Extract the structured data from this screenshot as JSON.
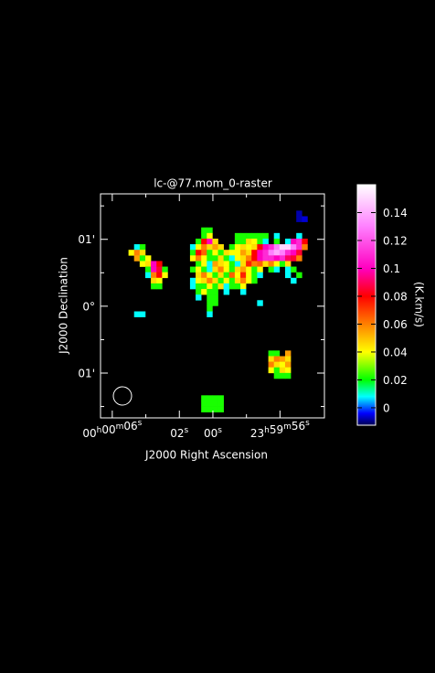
{
  "chart_data": {
    "type": "raster",
    "title": "lc-@77.mom_0-raster",
    "xlabel": "J2000 Right Ascension",
    "ylabel": "J2000 Declination",
    "colorbar_label": "(K.km/s)",
    "xlim": [
      6.7,
      -6.65
    ],
    "ylim": [
      1.68,
      -1.67
    ],
    "xticks": [
      {
        "value": 6,
        "label": "00h00m06s"
      },
      {
        "value": 2,
        "label": "02s"
      },
      {
        "value": 0,
        "label": "00s"
      },
      {
        "value": -4,
        "label": "23h59m56s"
      }
    ],
    "xminorticks": [
      4,
      -2
    ],
    "yticks": [
      {
        "value": 1,
        "label": "01'"
      },
      {
        "value": 0,
        "label": "0°"
      },
      {
        "value": -1,
        "label": "01'"
      }
    ],
    "yminorticks": [
      1.5,
      0.5,
      -0.5,
      -1.5
    ],
    "zlim": [
      -0.0125,
      0.16
    ],
    "zticks": [
      0,
      0.02,
      0.04,
      0.06,
      0.08,
      0.1,
      0.12,
      0.14
    ],
    "colorscale": [
      [
        -0.0125,
        "#000050"
      ],
      [
        -0.004,
        "#0000ff"
      ],
      [
        0.008,
        "#00ffff"
      ],
      [
        0.02,
        "#00ff00"
      ],
      [
        0.04,
        "#ffff00"
      ],
      [
        0.06,
        "#ff8000"
      ],
      [
        0.08,
        "#ff0000"
      ],
      [
        0.1,
        "#ff00c0"
      ],
      [
        0.13,
        "#ff80ff"
      ],
      [
        0.16,
        "#ffffff"
      ]
    ],
    "cells": [
      [
        6,
        9,
        0.008
      ],
      [
        7,
        9,
        0.022
      ],
      [
        5,
        10,
        0.04
      ],
      [
        6,
        10,
        0.06
      ],
      [
        7,
        10,
        0.045
      ],
      [
        6,
        11,
        0.055
      ],
      [
        7,
        11,
        0.022
      ],
      [
        8,
        11,
        0.04
      ],
      [
        7,
        12,
        0.04
      ],
      [
        8,
        12,
        0.045
      ],
      [
        9,
        12,
        0.1
      ],
      [
        10,
        12,
        0.08
      ],
      [
        8,
        13,
        0.022
      ],
      [
        9,
        13,
        0.1
      ],
      [
        10,
        13,
        0.085
      ],
      [
        11,
        13,
        0.022
      ],
      [
        8,
        14,
        0.008
      ],
      [
        9,
        14,
        0.06
      ],
      [
        10,
        14,
        0.08
      ],
      [
        11,
        14,
        0.04
      ],
      [
        9,
        15,
        0.045
      ],
      [
        10,
        15,
        0.04
      ],
      [
        9,
        16,
        0.022
      ],
      [
        10,
        16,
        0.022
      ],
      [
        6,
        21,
        0.008
      ],
      [
        7,
        21,
        0.008
      ],
      [
        35,
        3,
        -0.008
      ],
      [
        35,
        4,
        -0.008
      ],
      [
        36,
        4,
        -0.006
      ],
      [
        18,
        6,
        0.022
      ],
      [
        19,
        6,
        0.022
      ],
      [
        18,
        7,
        0.022
      ],
      [
        19,
        7,
        0.04
      ],
      [
        24,
        7,
        0.022
      ],
      [
        25,
        7,
        0.022
      ],
      [
        26,
        7,
        0.022
      ],
      [
        27,
        7,
        0.022
      ],
      [
        28,
        7,
        0.022
      ],
      [
        29,
        7,
        0.022
      ],
      [
        31,
        7,
        0.008
      ],
      [
        35,
        7,
        0.008
      ],
      [
        17,
        8,
        0.022
      ],
      [
        18,
        8,
        0.08
      ],
      [
        19,
        8,
        0.1
      ],
      [
        20,
        8,
        0.045
      ],
      [
        24,
        8,
        0.022
      ],
      [
        25,
        8,
        0.022
      ],
      [
        26,
        8,
        0.045
      ],
      [
        27,
        8,
        0.04
      ],
      [
        28,
        8,
        0.022
      ],
      [
        29,
        8,
        0.008
      ],
      [
        31,
        8,
        0.022
      ],
      [
        33,
        8,
        0.008
      ],
      [
        34,
        8,
        0.1
      ],
      [
        35,
        8,
        0.11
      ],
      [
        36,
        8,
        0.08
      ],
      [
        16,
        9,
        0.008
      ],
      [
        17,
        9,
        0.04
      ],
      [
        18,
        9,
        0.06
      ],
      [
        19,
        9,
        0.045
      ],
      [
        20,
        9,
        0.055
      ],
      [
        21,
        9,
        0.045
      ],
      [
        23,
        9,
        0.022
      ],
      [
        24,
        9,
        0.04
      ],
      [
        25,
        9,
        0.045
      ],
      [
        26,
        9,
        0.04
      ],
      [
        27,
        9,
        0.045
      ],
      [
        28,
        9,
        0.08
      ],
      [
        29,
        9,
        0.1
      ],
      [
        30,
        9,
        0.11
      ],
      [
        31,
        9,
        0.13
      ],
      [
        32,
        9,
        0.15
      ],
      [
        33,
        9,
        0.15
      ],
      [
        34,
        9,
        0.13
      ],
      [
        35,
        9,
        0.11
      ],
      [
        36,
        9,
        0.06
      ],
      [
        16,
        10,
        0.022
      ],
      [
        17,
        10,
        0.08
      ],
      [
        18,
        10,
        0.065
      ],
      [
        19,
        10,
        0.022
      ],
      [
        20,
        10,
        0.04
      ],
      [
        21,
        10,
        0.022
      ],
      [
        22,
        10,
        0.045
      ],
      [
        23,
        10,
        0.04
      ],
      [
        24,
        10,
        0.04
      ],
      [
        25,
        10,
        0.055
      ],
      [
        26,
        10,
        0.045
      ],
      [
        27,
        10,
        0.08
      ],
      [
        28,
        10,
        0.1
      ],
      [
        29,
        10,
        0.11
      ],
      [
        30,
        10,
        0.13
      ],
      [
        31,
        10,
        0.14
      ],
      [
        32,
        10,
        0.13
      ],
      [
        33,
        10,
        0.11
      ],
      [
        34,
        10,
        0.1
      ],
      [
        35,
        10,
        0.085
      ],
      [
        16,
        11,
        0.04
      ],
      [
        17,
        11,
        0.06
      ],
      [
        18,
        11,
        0.04
      ],
      [
        19,
        11,
        0.022
      ],
      [
        20,
        11,
        0.022
      ],
      [
        21,
        11,
        0.045
      ],
      [
        22,
        11,
        0.022
      ],
      [
        23,
        11,
        0.008
      ],
      [
        24,
        11,
        0.04
      ],
      [
        25,
        11,
        0.045
      ],
      [
        26,
        11,
        0.06
      ],
      [
        27,
        11,
        0.08
      ],
      [
        28,
        11,
        0.1
      ],
      [
        29,
        11,
        0.11
      ],
      [
        30,
        11,
        0.11
      ],
      [
        31,
        11,
        0.1
      ],
      [
        32,
        11,
        0.11
      ],
      [
        33,
        11,
        0.09
      ],
      [
        34,
        11,
        0.085
      ],
      [
        35,
        11,
        0.06
      ],
      [
        17,
        12,
        0.022
      ],
      [
        18,
        12,
        0.04
      ],
      [
        19,
        12,
        0.008
      ],
      [
        20,
        12,
        0.055
      ],
      [
        21,
        12,
        0.045
      ],
      [
        22,
        12,
        0.04
      ],
      [
        23,
        12,
        0.022
      ],
      [
        24,
        12,
        0.008
      ],
      [
        25,
        12,
        0.045
      ],
      [
        26,
        12,
        0.075
      ],
      [
        27,
        12,
        0.06
      ],
      [
        28,
        12,
        0.065
      ],
      [
        29,
        12,
        0.045
      ],
      [
        30,
        12,
        0.06
      ],
      [
        31,
        12,
        0.04
      ],
      [
        32,
        12,
        0.022
      ],
      [
        33,
        12,
        0.045
      ],
      [
        16,
        13,
        0.022
      ],
      [
        17,
        13,
        0.04
      ],
      [
        18,
        13,
        0.022
      ],
      [
        19,
        13,
        0.008
      ],
      [
        20,
        13,
        0.045
      ],
      [
        21,
        13,
        0.06
      ],
      [
        22,
        13,
        0.04
      ],
      [
        23,
        13,
        0.022
      ],
      [
        24,
        13,
        0.045
      ],
      [
        25,
        13,
        0.055
      ],
      [
        26,
        13,
        0.04
      ],
      [
        27,
        13,
        0.022
      ],
      [
        28,
        13,
        0.04
      ],
      [
        30,
        13,
        0.022
      ],
      [
        31,
        13,
        0.008
      ],
      [
        33,
        13,
        0.008
      ],
      [
        34,
        13,
        0.022
      ],
      [
        17,
        14,
        0.045
      ],
      [
        18,
        14,
        0.06
      ],
      [
        19,
        14,
        0.04
      ],
      [
        20,
        14,
        0.022
      ],
      [
        21,
        14,
        0.045
      ],
      [
        22,
        14,
        0.022
      ],
      [
        23,
        14,
        0.065
      ],
      [
        24,
        14,
        0.04
      ],
      [
        25,
        14,
        0.075
      ],
      [
        26,
        14,
        0.04
      ],
      [
        27,
        14,
        0.022
      ],
      [
        28,
        14,
        0.008
      ],
      [
        33,
        14,
        0.008
      ],
      [
        35,
        14,
        0.022
      ],
      [
        16,
        15,
        0.008
      ],
      [
        17,
        15,
        0.04
      ],
      [
        18,
        15,
        0.045
      ],
      [
        19,
        15,
        0.06
      ],
      [
        20,
        15,
        0.045
      ],
      [
        21,
        15,
        0.022
      ],
      [
        22,
        15,
        0.04
      ],
      [
        23,
        15,
        0.022
      ],
      [
        24,
        15,
        0.045
      ],
      [
        25,
        15,
        0.06
      ],
      [
        26,
        15,
        0.04
      ],
      [
        27,
        15,
        0.022
      ],
      [
        34,
        15,
        0.008
      ],
      [
        16,
        16,
        0.008
      ],
      [
        17,
        16,
        0.022
      ],
      [
        18,
        16,
        0.022
      ],
      [
        19,
        16,
        0.04
      ],
      [
        20,
        16,
        0.022
      ],
      [
        21,
        16,
        0.045
      ],
      [
        22,
        16,
        0.008
      ],
      [
        23,
        16,
        0.022
      ],
      [
        24,
        16,
        0.022
      ],
      [
        25,
        16,
        0.04
      ],
      [
        17,
        17,
        0.022
      ],
      [
        18,
        17,
        0.04
      ],
      [
        19,
        17,
        0.022
      ],
      [
        20,
        17,
        0.022
      ],
      [
        22,
        17,
        0.008
      ],
      [
        25,
        17,
        0.008
      ],
      [
        17,
        18,
        0.008
      ],
      [
        19,
        18,
        0.022
      ],
      [
        20,
        18,
        0.022
      ],
      [
        19,
        19,
        0.022
      ],
      [
        20,
        19,
        0.022
      ],
      [
        28,
        19,
        0.008
      ],
      [
        19,
        20,
        0.022
      ],
      [
        19,
        21,
        0.008
      ],
      [
        30,
        28,
        0.022
      ],
      [
        31,
        28,
        0.022
      ],
      [
        33,
        28,
        0.055
      ],
      [
        30,
        29,
        0.045
      ],
      [
        31,
        29,
        0.06
      ],
      [
        32,
        29,
        0.055
      ],
      [
        33,
        29,
        0.045
      ],
      [
        30,
        30,
        0.06
      ],
      [
        31,
        30,
        0.045
      ],
      [
        32,
        30,
        0.04
      ],
      [
        33,
        30,
        0.055
      ],
      [
        30,
        31,
        0.04
      ],
      [
        31,
        31,
        0.022
      ],
      [
        32,
        31,
        0.045
      ],
      [
        33,
        31,
        0.04
      ],
      [
        31,
        32,
        0.022
      ],
      [
        32,
        32,
        0.022
      ],
      [
        33,
        32,
        0.022
      ],
      [
        18,
        36,
        0.022
      ],
      [
        19,
        36,
        0.022
      ],
      [
        20,
        36,
        0.022
      ],
      [
        21,
        36,
        0.022
      ],
      [
        18,
        37,
        0.022
      ],
      [
        19,
        37,
        0.022
      ],
      [
        20,
        37,
        0.022
      ],
      [
        21,
        37,
        0.022
      ],
      [
        18,
        38,
        0.022
      ],
      [
        19,
        38,
        0.022
      ],
      [
        20,
        38,
        0.022
      ],
      [
        21,
        38,
        0.022
      ]
    ]
  }
}
